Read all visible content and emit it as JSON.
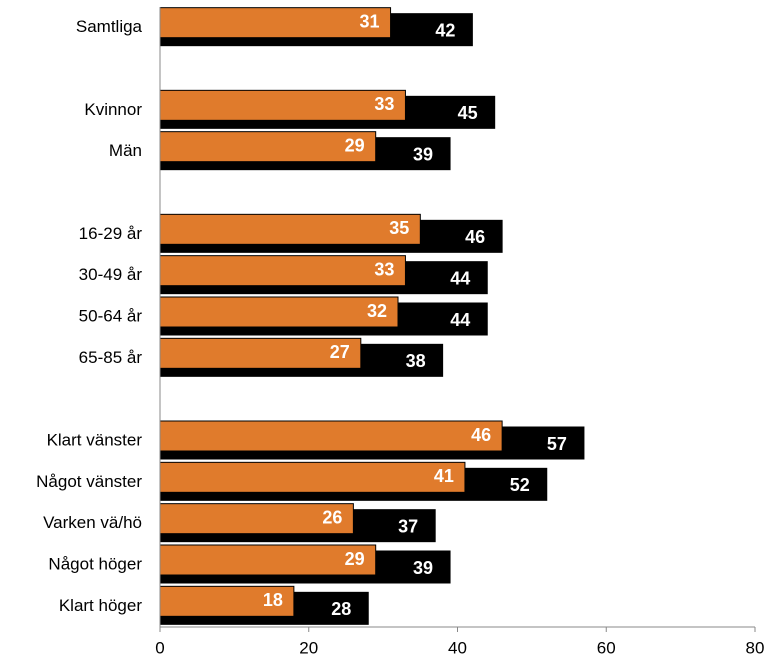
{
  "chart_data": {
    "type": "bar",
    "orientation": "horizontal",
    "categories": [
      "Samtliga",
      null,
      "Kvinnor",
      "Män",
      null,
      "16-29 år",
      "30-49 år",
      "50-64 år",
      "65-85 år",
      null,
      "Klart vänster",
      "Något vänster",
      "Varken vä/hö",
      "Något höger",
      "Klart höger"
    ],
    "series": [
      {
        "color": "#000000",
        "values": [
          42,
          null,
          45,
          39,
          null,
          46,
          44,
          44,
          38,
          null,
          57,
          52,
          37,
          39,
          28
        ]
      },
      {
        "color": "#e07b2c",
        "values": [
          31,
          null,
          33,
          29,
          null,
          35,
          33,
          32,
          27,
          null,
          46,
          41,
          26,
          29,
          18
        ]
      }
    ],
    "xlim": [
      0,
      80
    ],
    "xticks": [
      0,
      20,
      40,
      60,
      80
    ]
  }
}
